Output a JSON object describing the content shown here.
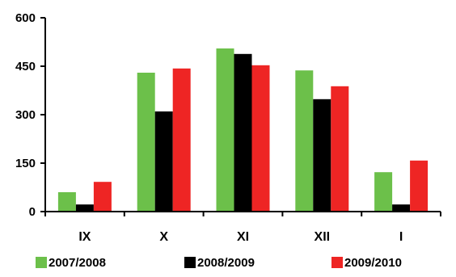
{
  "chart_data": {
    "type": "bar",
    "categories": [
      "IX",
      "X",
      "XI",
      "XII",
      "I"
    ],
    "series": [
      {
        "name": "2007/2008",
        "color": "#6cc04a",
        "values": [
          60,
          430,
          505,
          437,
          122
        ]
      },
      {
        "name": "2008/2009",
        "color": "#000000",
        "values": [
          22,
          310,
          488,
          348,
          22
        ]
      },
      {
        "name": "2009/2010",
        "color": "#ee2524",
        "values": [
          92,
          443,
          453,
          388,
          158
        ]
      }
    ],
    "yticks": [
      "0",
      "150",
      "300",
      "450",
      "600"
    ],
    "ylim": [
      0,
      600
    ],
    "grid": false,
    "legend_position": "bottom"
  }
}
